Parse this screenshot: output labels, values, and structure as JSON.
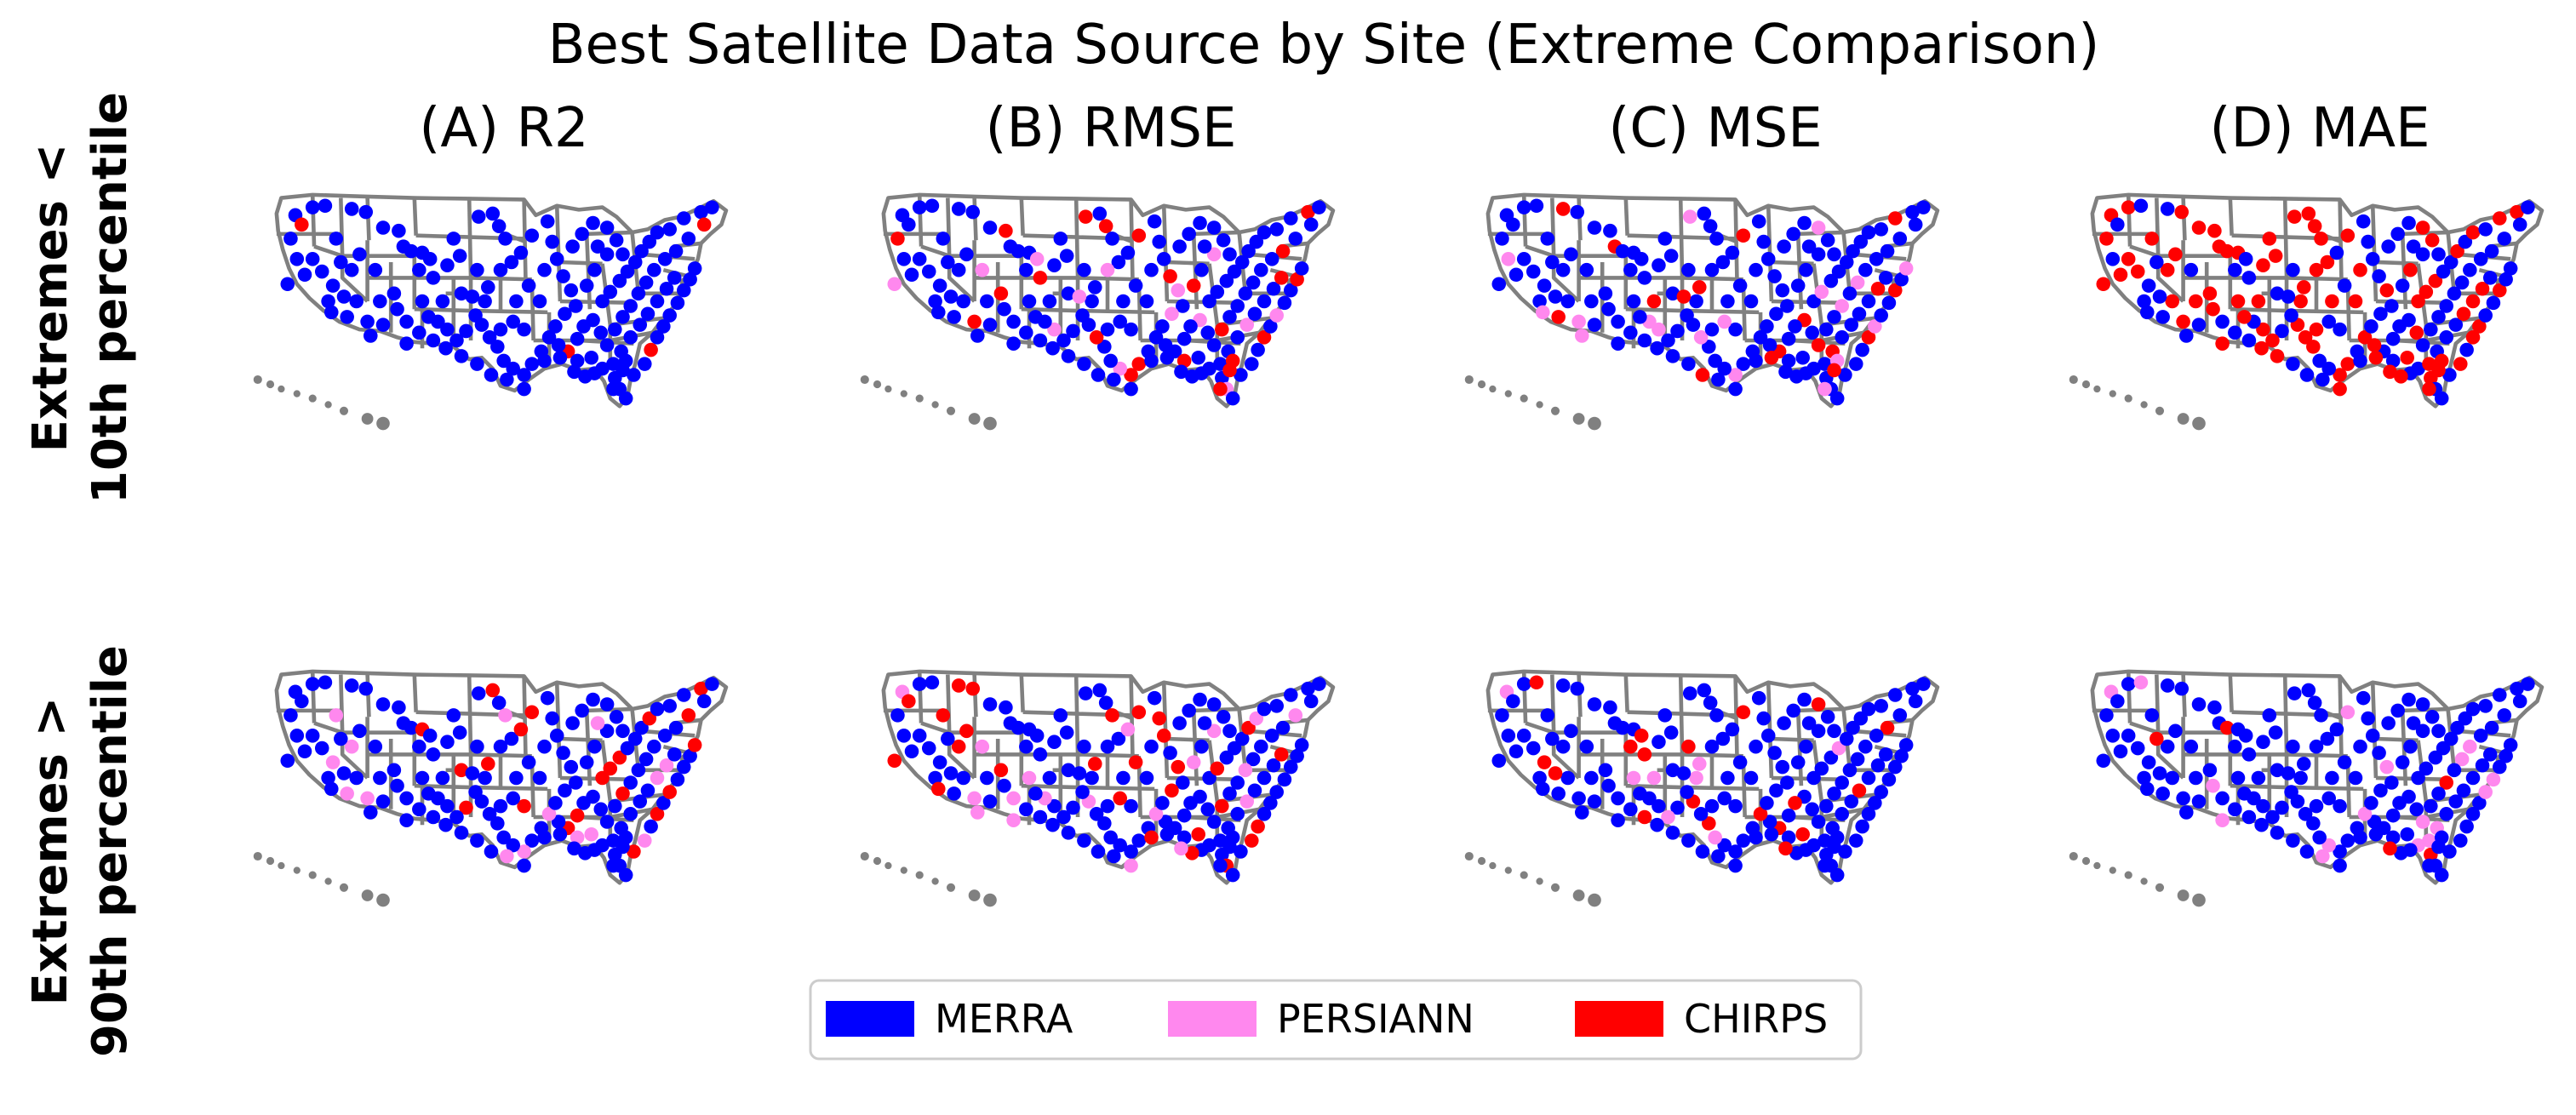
{
  "title": "Best Satellite Data Source by Site (Extreme Comparison)",
  "columns": [
    {
      "label": "(A) R2"
    },
    {
      "label": "(B) RMSE"
    },
    {
      "label": "(C) MSE"
    },
    {
      "label": "(D) MAE"
    }
  ],
  "rows": [
    {
      "label_line1": "Extremes <",
      "label_line2": "10th percentile"
    },
    {
      "label_line1": "Extremes >",
      "label_line2": "90th percentile"
    }
  ],
  "legend": [
    {
      "label": "MERRA",
      "color": "#0000ff"
    },
    {
      "label": "PERSIANN",
      "color": "#ff88ee"
    },
    {
      "label": "CHIRPS",
      "color": "#ff0000"
    }
  ],
  "map_share": [
    {
      "merra": 0.97,
      "persiann": 0.0,
      "chirps": 0.03
    },
    {
      "merra": 0.8,
      "persiann": 0.1,
      "chirps": 0.1
    },
    {
      "merra": 0.8,
      "persiann": 0.1,
      "chirps": 0.1
    },
    {
      "merra": 0.55,
      "persiann": 0.0,
      "chirps": 0.45
    },
    {
      "merra": 0.78,
      "persiann": 0.08,
      "chirps": 0.14
    },
    {
      "merra": 0.78,
      "persiann": 0.08,
      "chirps": 0.14
    },
    {
      "merra": 0.78,
      "persiann": 0.08,
      "chirps": 0.14
    },
    {
      "merra": 0.86,
      "persiann": 0.1,
      "chirps": 0.04
    }
  ]
}
